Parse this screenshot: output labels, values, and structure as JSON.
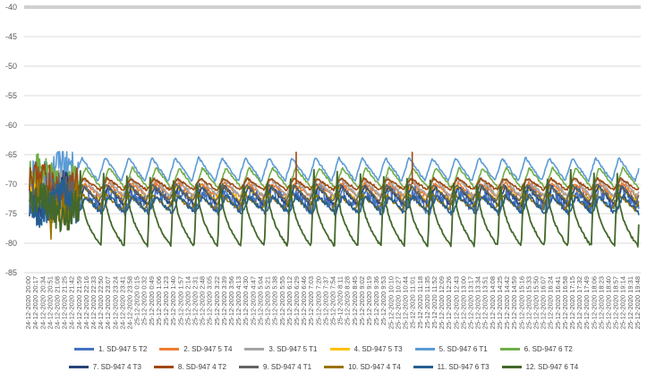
{
  "chart_data": {
    "type": "line",
    "title": "",
    "xlabel": "",
    "ylabel": "",
    "ylim": [
      -85,
      -40
    ],
    "yticks": [
      -40,
      -45,
      -50,
      -55,
      -60,
      -65,
      -70,
      -75,
      -80,
      -85
    ],
    "grid": true,
    "legend_position": "bottom",
    "x_labels": [
      "24-12-2020 20:00",
      "24-12-2020 20:17",
      "24-12-2020 20:34",
      "24-12-2020 20:51",
      "24-12-2020 21:08",
      "24-12-2020 21:25",
      "24-12-2020 21:42",
      "24-12-2020 21:59",
      "24-12-2020 22:16",
      "24-12-2020 22:33",
      "24-12-2020 22:50",
      "24-12-2020 23:07",
      "24-12-2020 23:24",
      "24-12-2020 23:41",
      "24-12-2020 23:58",
      "25-12-2020 0:15",
      "25-12-2020 0:32",
      "25-12-2020 0:49",
      "25-12-2020 1:06",
      "25-12-2020 1:23",
      "25-12-2020 1:40",
      "25-12-2020 1:57",
      "25-12-2020 2:14",
      "25-12-2020 2:31",
      "25-12-2020 2:48",
      "25-12-2020 3:05",
      "25-12-2020 3:22",
      "25-12-2020 3:39",
      "25-12-2020 3:56",
      "25-12-2020 4:13",
      "25-12-2020 4:30",
      "25-12-2020 4:47",
      "25-12-2020 5:04",
      "25-12-2020 5:21",
      "25-12-2020 5:38",
      "25-12-2020 5:55",
      "25-12-2020 6:12",
      "25-12-2020 6:29",
      "25-12-2020 6:46",
      "25-12-2020 7:03",
      "25-12-2020 7:20",
      "25-12-2020 7:37",
      "25-12-2020 7:54",
      "25-12-2020 8:11",
      "25-12-2020 8:28",
      "25-12-2020 8:45",
      "25-12-2020 9:02",
      "25-12-2020 9:19",
      "25-12-2020 9:36",
      "25-12-2020 9:53",
      "25-12-2020 10:10",
      "25-12-2020 10:27",
      "25-12-2020 10:44",
      "25-12-2020 11:01",
      "25-12-2020 11:18",
      "25-12-2020 11:35",
      "25-12-2020 11:52",
      "25-12-2020 12:09",
      "25-12-2020 12:26",
      "25-12-2020 12:43",
      "25-12-2020 13:00",
      "25-12-2020 13:17",
      "25-12-2020 13:34",
      "25-12-2020 13:51",
      "25-12-2020 14:08",
      "25-12-2020 14:25",
      "25-12-2020 14:42",
      "25-12-2020 14:59",
      "25-12-2020 15:16",
      "25-12-2020 15:33",
      "25-12-2020 15:50",
      "25-12-2020 16:07",
      "25-12-2020 16:24",
      "25-12-2020 16:41",
      "25-12-2020 16:58",
      "25-12-2020 17:15",
      "25-12-2020 17:32",
      "25-12-2020 17:49",
      "25-12-2020 18:06",
      "25-12-2020 18:23",
      "25-12-2020 18:40",
      "25-12-2020 18:57",
      "25-12-2020 19:14",
      "25-12-2020 19:31",
      "25-12-2020 19:48"
    ],
    "series": [
      {
        "name": "1. SD-947 5 T2",
        "color": "#4472C4",
        "base": -72.5,
        "amp": 1.5,
        "noise": 1.5
      },
      {
        "name": "2. SD-947 5 T4",
        "color": "#ED7D31",
        "base": -71.0,
        "amp": 1.2,
        "noise": 0.3
      },
      {
        "name": "3. SD-947 5 T1",
        "color": "#A5A5A5",
        "base": -70.5,
        "amp": 1.5,
        "noise": 0.3
      },
      {
        "name": "4. SD-947 5 T3",
        "color": "#FFC000",
        "base": -71.5,
        "amp": 1.2,
        "noise": 0.3
      },
      {
        "name": "5. SD-947 6 T1",
        "color": "#5B9BD5",
        "base": -67.5,
        "amp": 2.0,
        "noise": 0.2
      },
      {
        "name": "6. SD-947 6 T2",
        "color": "#70AD47",
        "base": -69.0,
        "amp": 1.8,
        "noise": 0.2
      },
      {
        "name": "7. SD-947 4 T3",
        "color": "#264478",
        "base": -72.0,
        "amp": 1.6,
        "noise": 0.3
      },
      {
        "name": "8. SD-947 4 T2",
        "color": "#9E480E",
        "base": -70.0,
        "amp": 1.0,
        "noise": 0.2
      },
      {
        "name": "9. SD-947 4 T1",
        "color": "#636363",
        "base": -71.5,
        "amp": 1.4,
        "noise": 0.3
      },
      {
        "name": "10. SD-947 4 T4",
        "color": "#997300",
        "base": -73.0,
        "amp": 1.3,
        "noise": 0.3
      },
      {
        "name": "11. SD-947 6 T3",
        "color": "#255E91",
        "base": -73.5,
        "amp": 1.5,
        "noise": 0.4
      },
      {
        "name": "12. SD-947 6 T4",
        "color": "#43682B",
        "base": -74.0,
        "amp": 6.5,
        "noise": 0.2
      }
    ],
    "cycles": 24,
    "spikes": [
      {
        "series": "8. SD-947 4 T2",
        "x_label": "25-12-2020 6:29",
        "value": -64.5
      },
      {
        "series": "8. SD-947 4 T2",
        "x_label": "25-12-2020 11:01",
        "value": -64.5
      }
    ]
  },
  "legend": {
    "row1": [
      "1. SD-947 5 T2",
      "2. SD-947 5 T4",
      "3. SD-947 5 T1",
      "4. SD-947 5 T3",
      "5. SD-947 6 T1",
      "6. SD-947 6 T2"
    ],
    "row2": [
      "7. SD-947 4 T3",
      "8. SD-947 4 T2",
      "9. SD-947 4 T1",
      "10. SD-947 4 T4",
      "11. SD-947 6 T3",
      "12. SD-947 6 T4"
    ]
  }
}
